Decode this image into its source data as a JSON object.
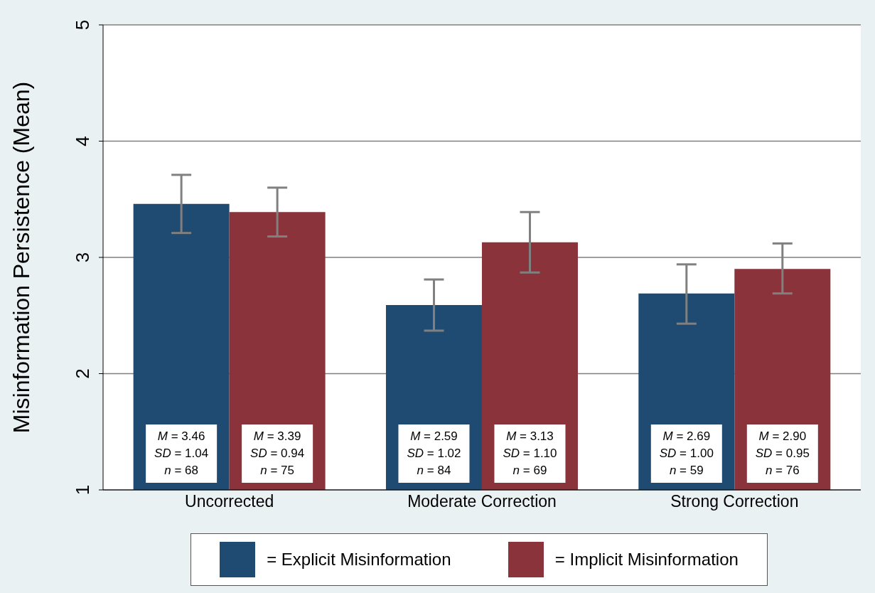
{
  "chart_data": {
    "type": "bar",
    "ylabel": "Misinformation Persistence (Mean)",
    "categories": [
      "Uncorrected",
      "Moderate Correction",
      "Strong Correction"
    ],
    "series": [
      {
        "name": "= Explicit Misinformation",
        "color": "#1f4a72",
        "values": [
          3.46,
          2.59,
          2.69
        ],
        "errors": [
          [
            3.21,
            3.71
          ],
          [
            2.37,
            2.81
          ],
          [
            2.43,
            2.94
          ]
        ],
        "value_labels": [
          "M = 3.46\nSD = 1.04\nn = 68",
          "M = 2.59\nSD = 1.02\nn = 84",
          "M = 2.69\nSD = 1.00\nn = 59"
        ]
      },
      {
        "name": "= Implicit Misinformation",
        "color": "#8b333b",
        "values": [
          3.39,
          3.13,
          2.9
        ],
        "errors": [
          [
            3.18,
            3.6
          ],
          [
            2.87,
            3.39
          ],
          [
            2.69,
            3.12
          ]
        ],
        "value_labels": [
          "M = 3.39\nSD = 0.94\nn = 75",
          "M = 3.13\nSD = 1.10\nn = 69",
          "M = 2.90\nSD = 0.95\nn = 76"
        ]
      }
    ],
    "ylim": [
      1,
      5
    ],
    "yticks": [
      1,
      2,
      3,
      4,
      5
    ],
    "grid": "y",
    "legend": "bottom"
  }
}
